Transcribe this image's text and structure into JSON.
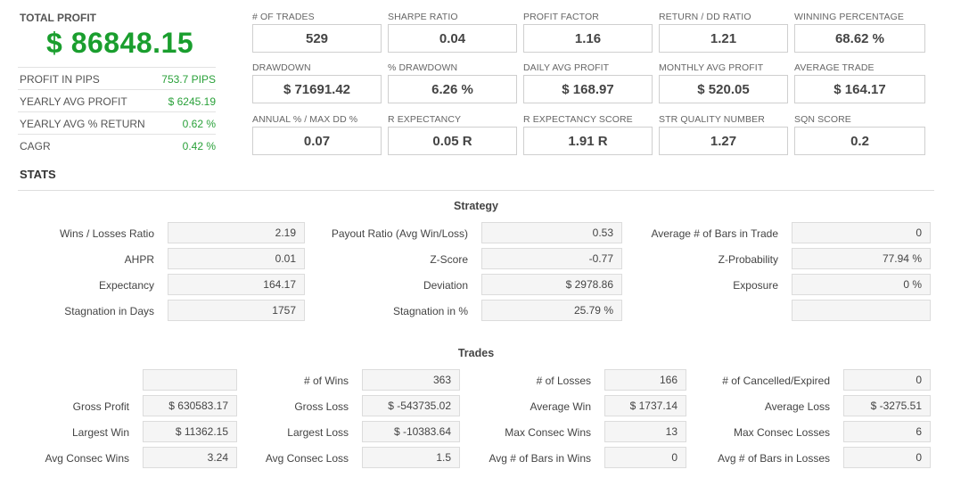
{
  "summary": {
    "total_profit_label": "TOTAL PROFIT",
    "total_profit_value": "$ 86848.15",
    "rows": [
      {
        "label": "PROFIT IN PIPS",
        "value": "753.7 PIPS"
      },
      {
        "label": "YEARLY AVG PROFIT",
        "value": "$ 6245.19"
      },
      {
        "label": "YEARLY AVG % RETURN",
        "value": "0.62 %"
      },
      {
        "label": "CAGR",
        "value": "0.42 %"
      }
    ]
  },
  "metrics": [
    [
      {
        "label": "# OF TRADES",
        "value": "529"
      },
      {
        "label": "SHARPE RATIO",
        "value": "0.04"
      },
      {
        "label": "PROFIT FACTOR",
        "value": "1.16"
      },
      {
        "label": "RETURN / DD RATIO",
        "value": "1.21"
      },
      {
        "label": "WINNING PERCENTAGE",
        "value": "68.62 %"
      }
    ],
    [
      {
        "label": "DRAWDOWN",
        "value": "$ 71691.42"
      },
      {
        "label": "% DRAWDOWN",
        "value": "6.26 %"
      },
      {
        "label": "DAILY AVG PROFIT",
        "value": "$ 168.97"
      },
      {
        "label": "MONTHLY AVG PROFIT",
        "value": "$ 520.05"
      },
      {
        "label": "AVERAGE TRADE",
        "value": "$ 164.17"
      }
    ],
    [
      {
        "label": "ANNUAL % / MAX DD %",
        "value": "0.07"
      },
      {
        "label": "R EXPECTANCY",
        "value": "0.05 R"
      },
      {
        "label": "R EXPECTANCY SCORE",
        "value": "1.91 R"
      },
      {
        "label": "STR QUALITY NUMBER",
        "value": "1.27"
      },
      {
        "label": "SQN SCORE",
        "value": "0.2"
      }
    ]
  ],
  "stats": {
    "title": "STATS",
    "strategy": {
      "title": "Strategy",
      "rows": [
        [
          {
            "label": "Wins / Losses Ratio",
            "value": "2.19"
          },
          {
            "label": "Payout Ratio (Avg Win/Loss)",
            "value": "0.53"
          },
          {
            "label": "Average # of Bars in Trade",
            "value": "0"
          }
        ],
        [
          {
            "label": "AHPR",
            "value": "0.01"
          },
          {
            "label": "Z-Score",
            "value": "-0.77"
          },
          {
            "label": "Z-Probability",
            "value": "77.94 %"
          }
        ],
        [
          {
            "label": "Expectancy",
            "value": "164.17"
          },
          {
            "label": "Deviation",
            "value": "$ 2978.86"
          },
          {
            "label": "Exposure",
            "value": "0 %"
          }
        ],
        [
          {
            "label": "Stagnation in Days",
            "value": "1757"
          },
          {
            "label": "Stagnation in %",
            "value": "25.79 %"
          },
          {
            "label": "",
            "value": ""
          }
        ]
      ]
    },
    "trades": {
      "title": "Trades",
      "rows": [
        [
          {
            "label": "",
            "value": ""
          },
          {
            "label": "# of Wins",
            "value": "363"
          },
          {
            "label": "# of Losses",
            "value": "166"
          },
          {
            "label": "# of Cancelled/Expired",
            "value": "0"
          }
        ],
        [
          {
            "label": "Gross Profit",
            "value": "$ 630583.17"
          },
          {
            "label": "Gross Loss",
            "value": "$ -543735.02"
          },
          {
            "label": "Average Win",
            "value": "$ 1737.14"
          },
          {
            "label": "Average Loss",
            "value": "$ -3275.51"
          }
        ],
        [
          {
            "label": "Largest Win",
            "value": "$ 11362.15"
          },
          {
            "label": "Largest Loss",
            "value": "$ -10383.64"
          },
          {
            "label": "Max Consec Wins",
            "value": "13"
          },
          {
            "label": "Max Consec Losses",
            "value": "6"
          }
        ],
        [
          {
            "label": "Avg Consec Wins",
            "value": "3.24"
          },
          {
            "label": "Avg Consec Loss",
            "value": "1.5"
          },
          {
            "label": "Avg # of Bars in Wins",
            "value": "0"
          },
          {
            "label": "Avg # of Bars in Losses",
            "value": "0"
          }
        ]
      ]
    }
  }
}
